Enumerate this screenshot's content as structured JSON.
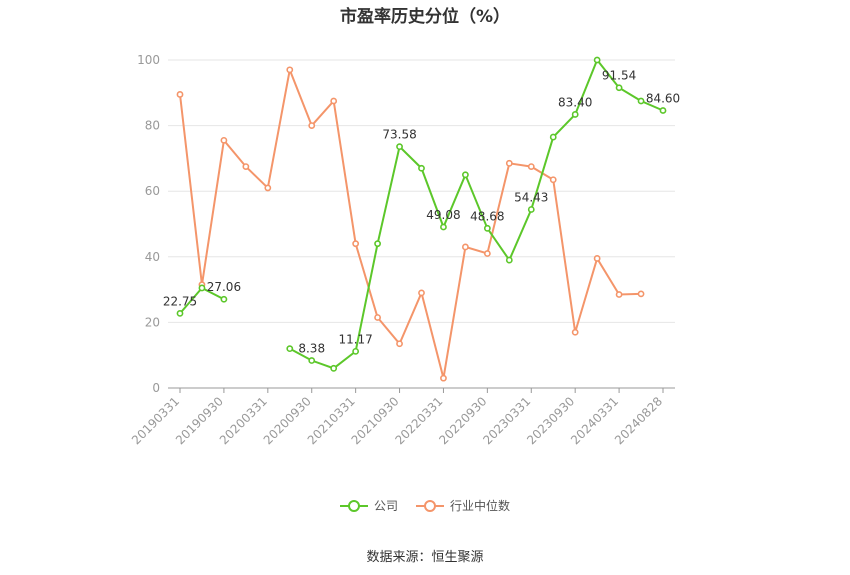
{
  "chart_data": {
    "type": "line",
    "title": "市盈率历史分位（%）",
    "source": "数据来源：恒生聚源",
    "ylim": [
      0,
      100
    ],
    "y_ticks": [
      "0",
      "20",
      "40",
      "60",
      "80",
      "100"
    ],
    "x": [
      "20190331",
      "20190630",
      "20190930",
      "20191231",
      "20200331",
      "20200630",
      "20200930",
      "20201231",
      "20210331",
      "20210630",
      "20210930",
      "20211231",
      "20220331",
      "20220630",
      "20220930",
      "20221231",
      "20230331",
      "20230630",
      "20230930",
      "20231231",
      "20240331",
      "20240630",
      "20240828"
    ],
    "x_tick_labels": [
      "20190331",
      "20190930",
      "20200331",
      "20200930",
      "20210331",
      "20210930",
      "20220331",
      "20220930",
      "20230331",
      "20230930",
      "20240331",
      "20240828"
    ],
    "x_tick_positions": [
      0,
      2,
      4,
      6,
      8,
      10,
      12,
      14,
      16,
      18,
      20,
      22
    ],
    "series": [
      {
        "name": "公司",
        "color": "#5cc72a",
        "values": [
          22.75,
          30.5,
          27.06,
          null,
          null,
          12.0,
          8.38,
          6.0,
          11.17,
          44.0,
          73.58,
          67.0,
          49.08,
          65.0,
          48.68,
          39.0,
          54.43,
          76.5,
          83.4,
          100.0,
          91.54,
          87.5,
          84.6
        ],
        "labels": [
          {
            "i": 0,
            "text": "22.75"
          },
          {
            "i": 2,
            "text": "27.06"
          },
          {
            "i": 6,
            "text": "8.38"
          },
          {
            "i": 8,
            "text": "11.17"
          },
          {
            "i": 10,
            "text": "73.58"
          },
          {
            "i": 12,
            "text": "49.08"
          },
          {
            "i": 14,
            "text": "48.68"
          },
          {
            "i": 16,
            "text": "54.43"
          },
          {
            "i": 18,
            "text": "83.40"
          },
          {
            "i": 20,
            "text": "91.54"
          },
          {
            "i": 22,
            "text": "84.60"
          }
        ]
      },
      {
        "name": "行业中位数",
        "color": "#f4956a",
        "values": [
          89.5,
          31.5,
          75.5,
          67.5,
          61.0,
          97.0,
          80.0,
          87.5,
          44.0,
          21.5,
          13.5,
          29.0,
          3.0,
          43.0,
          41.0,
          68.5,
          67.5,
          63.5,
          17.0,
          39.5,
          28.5,
          28.7,
          null
        ]
      }
    ]
  }
}
